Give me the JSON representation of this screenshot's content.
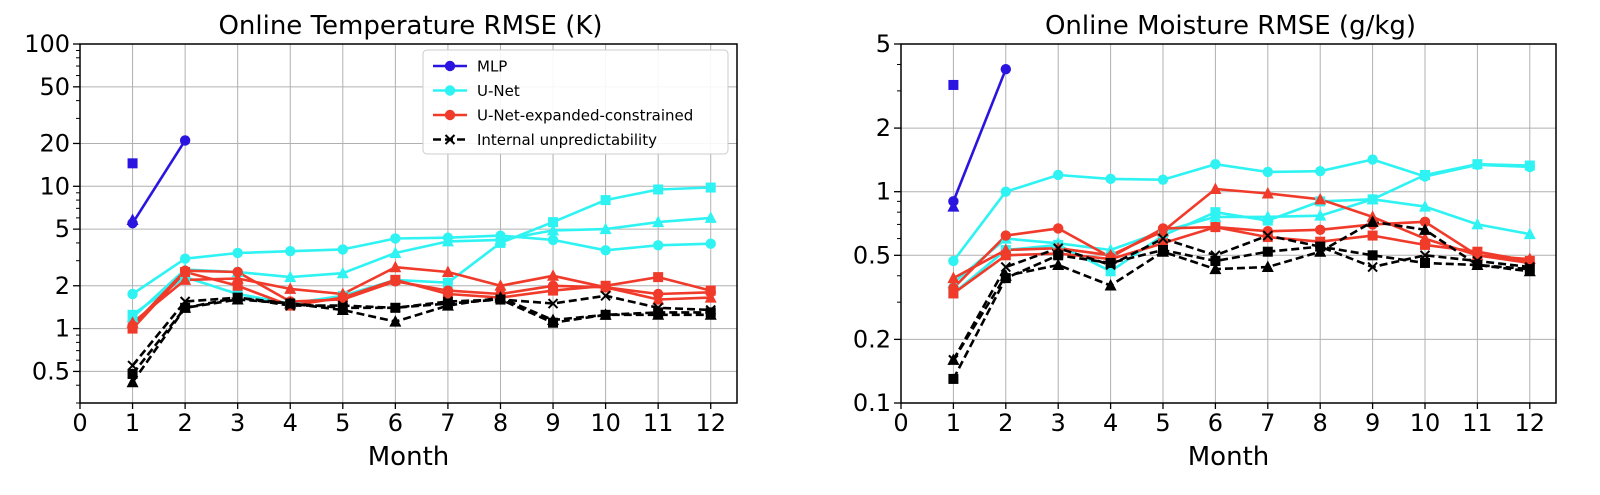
{
  "chart_data": [
    {
      "type": "line",
      "title": "Online Temperature RMSE (K)",
      "xlabel": "Month",
      "ylabel": "",
      "yscale": "log",
      "xlim": [
        0,
        12.5
      ],
      "ylim": [
        0.3,
        100
      ],
      "xticks": [
        0,
        1,
        2,
        3,
        4,
        5,
        6,
        7,
        8,
        9,
        10,
        11,
        12
      ],
      "yticks": [
        0.5,
        1,
        2,
        5,
        10,
        20,
        50,
        100
      ],
      "ytick_labels": [
        "0.5",
        "1",
        "2",
        "5",
        "10",
        "20",
        "50",
        "100"
      ],
      "grid": true,
      "legend_position": "top-right",
      "legend": [
        {
          "label": "MLP",
          "color": "#2a14e0",
          "marker": "circle",
          "dashed": false
        },
        {
          "label": "U-Net",
          "color": "#2ff3f3",
          "marker": "circle",
          "dashed": false
        },
        {
          "label": "U-Net-expanded-constrained",
          "color": "#f03a2a",
          "marker": "circle",
          "dashed": false
        },
        {
          "label": "Internal unpredictability",
          "color": "#000000",
          "marker": "x",
          "dashed": true
        }
      ],
      "series": [
        {
          "name": "MLP circle",
          "color": "#2a14e0",
          "marker": "circle",
          "dashed": false,
          "x": [
            1,
            2
          ],
          "values": [
            5.5,
            21
          ]
        },
        {
          "name": "MLP square",
          "color": "#2a14e0",
          "marker": "square",
          "dashed": false,
          "x": [
            1
          ],
          "values": [
            14.5
          ]
        },
        {
          "name": "MLP triangle",
          "color": "#2a14e0",
          "marker": "triangle",
          "dashed": false,
          "x": [
            1
          ],
          "values": [
            5.8
          ]
        },
        {
          "name": "U-Net circle",
          "color": "#2ff3f3",
          "marker": "circle",
          "dashed": false,
          "x": [
            1,
            2,
            3,
            4,
            5,
            6,
            7,
            8,
            9,
            10,
            11,
            12
          ],
          "values": [
            1.75,
            3.1,
            3.4,
            3.5,
            3.6,
            4.3,
            4.35,
            4.5,
            4.2,
            3.55,
            3.85,
            3.95
          ]
        },
        {
          "name": "U-Net square",
          "color": "#2ff3f3",
          "marker": "square",
          "dashed": false,
          "x": [
            1,
            2,
            3,
            4,
            5,
            6,
            7,
            8,
            9,
            10,
            11,
            12
          ],
          "values": [
            1.25,
            2.3,
            1.75,
            1.5,
            1.7,
            2.2,
            2.1,
            4.0,
            5.6,
            8.0,
            9.5,
            9.8
          ]
        },
        {
          "name": "U-Net triangle",
          "color": "#2ff3f3",
          "marker": "triangle",
          "dashed": false,
          "x": [
            1,
            2,
            3,
            4,
            5,
            6,
            7,
            8,
            9,
            10,
            11,
            12
          ],
          "values": [
            1.2,
            2.6,
            2.5,
            2.3,
            2.45,
            3.4,
            4.1,
            4.2,
            4.9,
            5.0,
            5.6,
            6.0
          ]
        },
        {
          "name": "U-Net-expanded-constrained circle",
          "color": "#f03a2a",
          "marker": "circle",
          "dashed": false,
          "x": [
            1,
            2,
            3,
            4,
            5,
            6,
            7,
            8,
            9,
            10,
            11,
            12
          ],
          "values": [
            1.05,
            2.55,
            2.5,
            1.55,
            1.6,
            2.15,
            1.85,
            1.75,
            2.0,
            1.95,
            1.75,
            1.8
          ]
        },
        {
          "name": "U-Net-expanded-constrained square",
          "color": "#f03a2a",
          "marker": "square",
          "dashed": false,
          "x": [
            1,
            2,
            3,
            4,
            5,
            6,
            7,
            8,
            9,
            10,
            11,
            12
          ],
          "values": [
            1.0,
            2.5,
            2.0,
            1.45,
            1.65,
            2.2,
            1.75,
            1.65,
            1.85,
            2.0,
            2.3,
            1.85
          ]
        },
        {
          "name": "U-Net-expanded-constrained triangle",
          "color": "#f03a2a",
          "marker": "triangle",
          "dashed": false,
          "x": [
            1,
            2,
            3,
            4,
            5,
            6,
            7,
            8,
            9,
            10,
            11,
            12
          ],
          "values": [
            1.1,
            2.2,
            2.25,
            1.9,
            1.75,
            2.7,
            2.5,
            2.0,
            2.35,
            1.95,
            1.6,
            1.65
          ]
        },
        {
          "name": "Internal unpredictability x",
          "color": "#000000",
          "marker": "x",
          "dashed": true,
          "x": [
            1,
            2,
            3,
            4,
            5,
            6,
            7,
            8,
            9,
            10,
            11,
            12
          ],
          "values": [
            0.55,
            1.55,
            1.65,
            1.45,
            1.45,
            1.4,
            1.55,
            1.6,
            1.5,
            1.7,
            1.4,
            1.35
          ]
        },
        {
          "name": "Internal unpredictability square",
          "color": "#000000",
          "marker": "square",
          "dashed": true,
          "x": [
            1,
            2,
            3,
            4,
            5,
            6,
            7,
            8,
            9,
            10,
            11,
            12
          ],
          "values": [
            0.48,
            1.4,
            1.65,
            1.5,
            1.4,
            1.4,
            1.5,
            1.6,
            1.1,
            1.25,
            1.3,
            1.3
          ]
        },
        {
          "name": "Internal unpredictability triangle",
          "color": "#000000",
          "marker": "triangle",
          "dashed": true,
          "x": [
            1,
            2,
            3,
            4,
            5,
            6,
            7,
            8,
            9,
            10,
            11,
            12
          ],
          "values": [
            0.42,
            1.4,
            1.6,
            1.5,
            1.35,
            1.12,
            1.45,
            1.65,
            1.15,
            1.25,
            1.25,
            1.25
          ]
        }
      ]
    },
    {
      "type": "line",
      "title": "Online Moisture RMSE (g/kg)",
      "xlabel": "Month",
      "ylabel": "",
      "yscale": "log",
      "xlim": [
        0,
        12.5
      ],
      "ylim": [
        0.1,
        5
      ],
      "xticks": [
        0,
        1,
        2,
        3,
        4,
        5,
        6,
        7,
        8,
        9,
        10,
        11,
        12
      ],
      "yticks": [
        0.1,
        0.2,
        0.5,
        1,
        2,
        5
      ],
      "ytick_labels": [
        "0.1",
        "0.2",
        "0.5",
        "1",
        "2",
        "5"
      ],
      "grid": true,
      "series": [
        {
          "name": "MLP circle",
          "color": "#2a14e0",
          "marker": "circle",
          "dashed": false,
          "x": [
            1,
            2
          ],
          "values": [
            0.9,
            3.8
          ]
        },
        {
          "name": "MLP square",
          "color": "#2a14e0",
          "marker": "square",
          "dashed": false,
          "x": [
            1
          ],
          "values": [
            3.2
          ]
        },
        {
          "name": "MLP triangle",
          "color": "#2a14e0",
          "marker": "triangle",
          "dashed": false,
          "x": [
            1
          ],
          "values": [
            0.85
          ]
        },
        {
          "name": "U-Net circle",
          "color": "#2ff3f3",
          "marker": "circle",
          "dashed": false,
          "x": [
            1,
            2,
            3,
            4,
            5,
            6,
            7,
            8,
            9,
            10,
            11,
            12
          ],
          "values": [
            0.47,
            1.0,
            1.2,
            1.15,
            1.14,
            1.35,
            1.24,
            1.25,
            1.42,
            1.18,
            1.34,
            1.31
          ]
        },
        {
          "name": "U-Net square",
          "color": "#2ff3f3",
          "marker": "square",
          "dashed": false,
          "x": [
            1,
            2,
            3,
            4,
            5,
            6,
            7,
            8,
            9,
            10,
            11,
            12
          ],
          "values": [
            0.33,
            0.53,
            0.56,
            0.42,
            0.62,
            0.8,
            0.73,
            0.9,
            0.92,
            1.2,
            1.35,
            1.33
          ]
        },
        {
          "name": "U-Net triangle",
          "color": "#2ff3f3",
          "marker": "triangle",
          "dashed": false,
          "x": [
            1,
            2,
            3,
            4,
            5,
            6,
            7,
            8,
            9,
            10,
            11,
            12
          ],
          "values": [
            0.37,
            0.6,
            0.57,
            0.53,
            0.65,
            0.76,
            0.76,
            0.77,
            0.92,
            0.85,
            0.7,
            0.63
          ]
        },
        {
          "name": "U-Net-expanded-constrained circle",
          "color": "#f03a2a",
          "marker": "circle",
          "dashed": false,
          "x": [
            1,
            2,
            3,
            4,
            5,
            6,
            7,
            8,
            9,
            10,
            11,
            12
          ],
          "values": [
            0.35,
            0.62,
            0.67,
            0.49,
            0.67,
            0.68,
            0.65,
            0.66,
            0.7,
            0.72,
            0.5,
            0.46
          ]
        },
        {
          "name": "U-Net-expanded-constrained square",
          "color": "#f03a2a",
          "marker": "square",
          "dashed": false,
          "x": [
            1,
            2,
            3,
            4,
            5,
            6,
            7,
            8,
            9,
            10,
            11,
            12
          ],
          "values": [
            0.33,
            0.5,
            0.51,
            0.48,
            0.57,
            0.68,
            0.61,
            0.58,
            0.62,
            0.56,
            0.52,
            0.47
          ]
        },
        {
          "name": "U-Net-expanded-constrained triangle",
          "color": "#f03a2a",
          "marker": "triangle",
          "dashed": false,
          "x": [
            1,
            2,
            3,
            4,
            5,
            6,
            7,
            8,
            9,
            10,
            11,
            12
          ],
          "values": [
            0.39,
            0.53,
            0.54,
            0.5,
            0.65,
            1.03,
            0.98,
            0.92,
            0.76,
            0.6,
            0.5,
            0.48
          ]
        },
        {
          "name": "Internal unpredictability x",
          "color": "#000000",
          "marker": "x",
          "dashed": true,
          "x": [
            1,
            2,
            3,
            4,
            5,
            6,
            7,
            8,
            9,
            10,
            11,
            12
          ],
          "values": [
            0.16,
            0.44,
            0.54,
            0.45,
            0.6,
            0.5,
            0.62,
            0.55,
            0.44,
            0.5,
            0.47,
            0.44
          ]
        },
        {
          "name": "Internal unpredictability square",
          "color": "#000000",
          "marker": "square",
          "dashed": true,
          "x": [
            1,
            2,
            3,
            4,
            5,
            6,
            7,
            8,
            9,
            10,
            11,
            12
          ],
          "values": [
            0.13,
            0.39,
            0.5,
            0.46,
            0.53,
            0.47,
            0.52,
            0.55,
            0.5,
            0.46,
            0.45,
            0.43
          ]
        },
        {
          "name": "Internal unpredictability triangle",
          "color": "#000000",
          "marker": "triangle",
          "dashed": true,
          "x": [
            1,
            2,
            3,
            4,
            5,
            6,
            7,
            8,
            9,
            10,
            11,
            12
          ],
          "values": [
            0.16,
            0.4,
            0.45,
            0.36,
            0.52,
            0.43,
            0.44,
            0.52,
            0.72,
            0.66,
            0.45,
            0.42
          ]
        }
      ]
    }
  ]
}
